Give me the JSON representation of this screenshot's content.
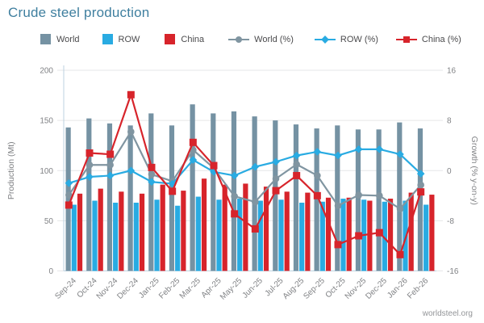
{
  "title": "Crude steel production",
  "source": "worldsteel.org",
  "colors": {
    "title": "#3f7f9f",
    "world_bar": "#7592a3",
    "row_bar": "#29abe2",
    "china_bar": "#d7242b",
    "world_line": "#8095a1",
    "row_line": "#29abe2",
    "china_line": "#d7242b",
    "grid": "#e6e7e8",
    "axis_line": "#bcd2e0",
    "axis_text": "#808285",
    "legend_text": "#4a4a4c",
    "source_text": "#939598"
  },
  "legend": [
    {
      "label": "World",
      "swatch": "square",
      "color_key": "world_bar",
      "gap_after": 28
    },
    {
      "label": "ROW",
      "swatch": "square",
      "color_key": "row_bar",
      "gap_after": 31
    },
    {
      "label": "China",
      "swatch": "square",
      "color_key": "china_bar",
      "gap_after": 30
    },
    {
      "label": "World (%)",
      "swatch": "circle",
      "color_key": "world_line",
      "gap_after": 26
    },
    {
      "label": "ROW (%)",
      "swatch": "diamond",
      "color_key": "row_line",
      "gap_after": 22
    },
    {
      "label": "China (%)",
      "swatch": "sqmark",
      "color_key": "china_line",
      "gap_after": 0
    }
  ],
  "chart_data": {
    "type": "combo-bar-line",
    "categories": [
      "Sep-24",
      "Oct-24",
      "Nov-24",
      "Dec-24",
      "Jan-25",
      "Feb-25",
      "Mar-25",
      "Apr-25",
      "May-25",
      "Jun-25",
      "Jul-25",
      "Aug-25",
      "Sep-25",
      "Oct-25",
      "Nov-25",
      "Dec-25",
      "Jan-26",
      "Feb-26"
    ],
    "left_axis": {
      "label": "Production (Mt)",
      "min": 0,
      "max": 200,
      "ticks": [
        0,
        50,
        100,
        150,
        200
      ]
    },
    "right_axis": {
      "label": "Growth (% y-on-y)",
      "min": -16,
      "max": 16,
      "ticks": [
        16,
        8,
        0,
        -8,
        -16
      ]
    },
    "grid": true,
    "legend_position": "top",
    "bar_series": [
      {
        "name": "World",
        "color_key": "world_bar",
        "values": [
          143,
          152,
          147,
          145,
          157,
          145,
          166,
          157,
          159,
          154,
          150,
          146,
          142,
          145,
          141,
          141,
          148,
          142
        ]
      },
      {
        "name": "ROW",
        "color_key": "row_bar",
        "values": [
          66,
          70,
          68,
          68,
          71,
          65,
          74,
          71,
          72,
          70,
          71,
          68,
          69,
          72,
          71,
          69,
          70,
          66
        ]
      },
      {
        "name": "China",
        "color_key": "china_bar",
        "values": [
          77,
          82,
          79,
          77,
          86,
          80,
          92,
          86,
          87,
          84,
          79,
          78,
          73,
          73,
          70,
          72,
          78,
          76
        ]
      }
    ],
    "line_series": [
      {
        "name": "World (%)",
        "color_key": "world_line",
        "marker": "circle",
        "values": [
          -3.9,
          0.9,
          0.9,
          6.2,
          -0.6,
          -1.7,
          3.3,
          0.4,
          -4.1,
          -5.0,
          -1.3,
          1.0,
          -0.8,
          -5.6,
          -3.9,
          -4.0,
          -6.1,
          -2.3
        ]
      },
      {
        "name": "ROW (%)",
        "color_key": "row_line",
        "marker": "diamond",
        "values": [
          -2.0,
          -1.0,
          -0.8,
          0.0,
          -1.8,
          -2.1,
          1.7,
          -0.2,
          -0.8,
          0.6,
          1.4,
          2.4,
          3.0,
          2.4,
          3.4,
          3.4,
          2.6,
          -0.5
        ]
      },
      {
        "name": "China (%)",
        "color_key": "china_line",
        "marker": "square",
        "values": [
          -5.5,
          2.8,
          2.6,
          12.1,
          0.5,
          -3.3,
          4.5,
          0.8,
          -6.9,
          -9.3,
          -3.2,
          -0.8,
          -4.0,
          -11.8,
          -10.4,
          -9.9,
          -13.4,
          -3.4
        ]
      }
    ]
  }
}
